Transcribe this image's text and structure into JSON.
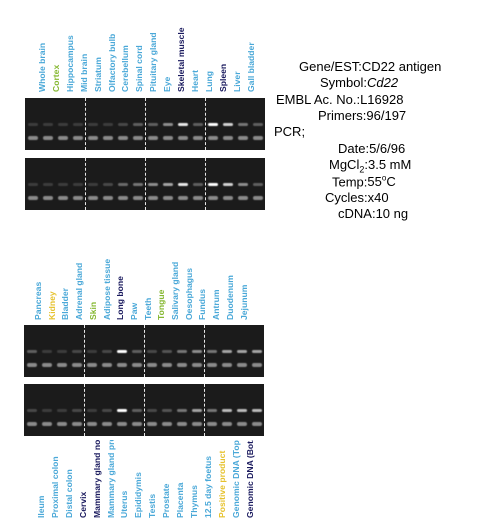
{
  "panel1": {
    "labels": [
      {
        "text": "Whole brain",
        "color": "#4aa8d8"
      },
      {
        "text": "Cortex",
        "color": "#86b832"
      },
      {
        "text": "Hippocampus",
        "color": "#4aa8d8"
      },
      {
        "text": "Mid brain",
        "color": "#4aa8d8"
      },
      {
        "text": "Striatum",
        "color": "#4aa8d8"
      },
      {
        "text": "Olfactory bulb",
        "color": "#4aa8d8"
      },
      {
        "text": "Cerebellum",
        "color": "#4aa8d8"
      },
      {
        "text": "Spinal cord",
        "color": "#4aa8d8"
      },
      {
        "text": "Pituitary gland",
        "color": "#4aa8d8"
      },
      {
        "text": "Eye",
        "color": "#4aa8d8"
      },
      {
        "text": "Skeletal muscle",
        "color": "#1a1a5e"
      },
      {
        "text": "Heart",
        "color": "#4aa8d8"
      },
      {
        "text": "Lung",
        "color": "#4aa8d8"
      },
      {
        "text": "Spleen",
        "color": "#1a1a5e"
      },
      {
        "text": "Liver",
        "color": "#4aa8d8"
      },
      {
        "text": "Gall bladder",
        "color": "#4aa8d8"
      }
    ],
    "gel_top": [
      0.15,
      0.15,
      0.15,
      0.15,
      0.15,
      0.15,
      0.2,
      0.3,
      0.3,
      0.5,
      0.9,
      0.3,
      1.0,
      0.8,
      0.4,
      0.3
    ],
    "gel_bottom": [
      0.15,
      0.15,
      0.15,
      0.15,
      0.15,
      0.2,
      0.35,
      0.4,
      0.5,
      0.6,
      0.9,
      0.3,
      1.0,
      0.8,
      0.5,
      0.3
    ]
  },
  "panel2": {
    "labels": [
      {
        "text": "Pancreas",
        "color": "#4aa8d8"
      },
      {
        "text": "Kidney",
        "color": "#e6c22e"
      },
      {
        "text": "Bladder",
        "color": "#4aa8d8"
      },
      {
        "text": "Adrenal gland",
        "color": "#4aa8d8"
      },
      {
        "text": "Skin",
        "color": "#86b832"
      },
      {
        "text": "Adipose tissue",
        "color": "#4aa8d8"
      },
      {
        "text": "Long bone",
        "color": "#1a1a5e"
      },
      {
        "text": "Paw",
        "color": "#4aa8d8"
      },
      {
        "text": "Teeth",
        "color": "#4aa8d8"
      },
      {
        "text": "Tongue",
        "color": "#86b832"
      },
      {
        "text": "Salivary gland",
        "color": "#4aa8d8"
      },
      {
        "text": "Oesophagus",
        "color": "#4aa8d8"
      },
      {
        "text": "Fundus",
        "color": "#4aa8d8"
      },
      {
        "text": "Antrum",
        "color": "#4aa8d8"
      },
      {
        "text": "Duodenum",
        "color": "#4aa8d8"
      },
      {
        "text": "Jejunum",
        "color": "#4aa8d8"
      }
    ],
    "gel_top": [
      0.3,
      0.15,
      0.15,
      0.2,
      0.15,
      0.2,
      1.0,
      0.3,
      0.2,
      0.25,
      0.4,
      0.5,
      0.4,
      0.6,
      0.6,
      0.6
    ],
    "gel_bottom": [
      0.2,
      0.15,
      0.15,
      0.2,
      0.15,
      0.2,
      1.0,
      0.3,
      0.2,
      0.25,
      0.4,
      0.6,
      0.4,
      0.7,
      0.7,
      0.7
    ]
  },
  "panel3": {
    "labels": [
      {
        "text": "Ileum",
        "color": "#4aa8d8"
      },
      {
        "text": "Proximal colon",
        "color": "#4aa8d8"
      },
      {
        "text": "Distal colon",
        "color": "#4aa8d8"
      },
      {
        "text": "Cervix",
        "color": "#1a1a5e"
      },
      {
        "text": "Mammary gland non-preg.",
        "color": "#1a1a5e"
      },
      {
        "text": "Mammary gland preg.",
        "color": "#4aa8d8"
      },
      {
        "text": "Uterus",
        "color": "#4aa8d8"
      },
      {
        "text": "Epididymis",
        "color": "#4aa8d8"
      },
      {
        "text": "Testis",
        "color": "#4aa8d8"
      },
      {
        "text": "Prostate",
        "color": "#4aa8d8"
      },
      {
        "text": "Placenta",
        "color": "#4aa8d8"
      },
      {
        "text": "Thymus",
        "color": "#4aa8d8"
      },
      {
        "text": "12.5 day foetus",
        "color": "#4aa8d8"
      },
      {
        "text": "Positive product",
        "color": "#e6c22e"
      },
      {
        "text": "Genomic DNA (Top)",
        "color": "#4aa8d8"
      },
      {
        "text": "Genomic DNA (Bot.)",
        "color": "#1a1a5e"
      }
    ]
  },
  "info": {
    "gene_label": "Gene/EST:",
    "gene_value": "CD22 antigen",
    "symbol_label": "Symbol:",
    "symbol_value": "Cd22",
    "embl_label": "EMBL Ac. No.:",
    "embl_value": "L16928",
    "primers_label": "Primers:",
    "primers_value": "96/197",
    "pcr_label": "PCR;",
    "date_label": "Date:",
    "date_value": "5/6/96",
    "mgcl_label_a": "MgCl",
    "mgcl_label_sub": "2",
    "mgcl_label_b": ":",
    "mgcl_value": "3.5 mM",
    "temp_label": "Temp:",
    "temp_value_a": "55",
    "temp_value_sup": "o",
    "temp_value_b": "C",
    "cycles_label": "Cycles:",
    "cycles_value": "x40",
    "cdna_label": "cDNA:",
    "cdna_value": "10 ng"
  }
}
